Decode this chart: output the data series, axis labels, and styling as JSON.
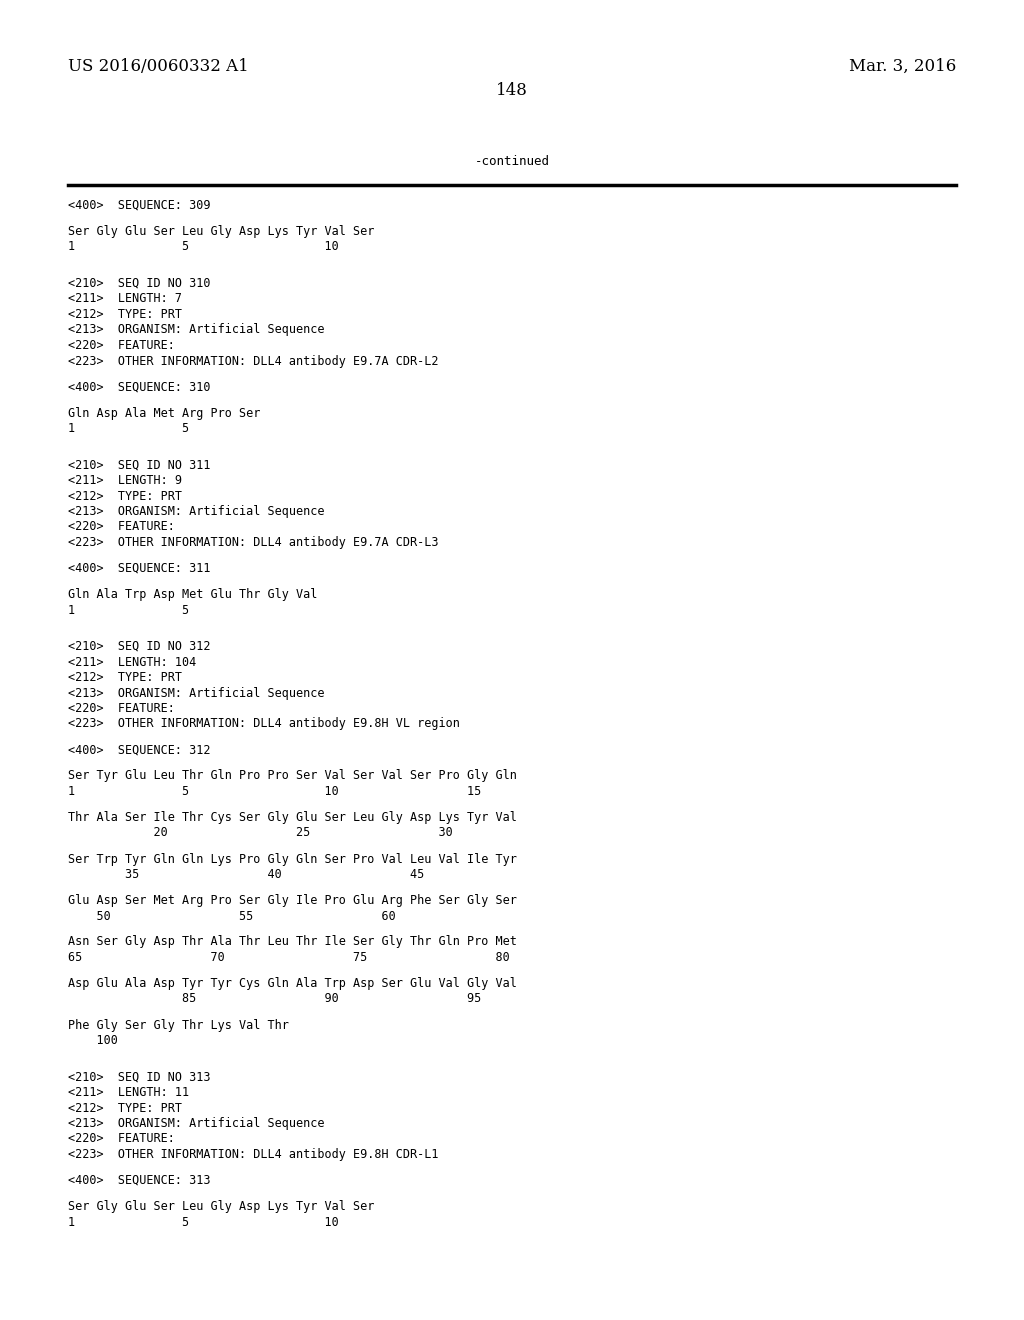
{
  "bg_color": "#ffffff",
  "header_left": "US 2016/0060332 A1",
  "header_right": "Mar. 3, 2016",
  "page_number": "148",
  "continued_label": "-continued",
  "text_color": "#000000",
  "content": [
    {
      "type": "seq_tag",
      "text": "<400>  SEQUENCE: 309"
    },
    {
      "type": "blank"
    },
    {
      "type": "sequence",
      "text": "Ser Gly Glu Ser Leu Gly Asp Lys Tyr Val Ser"
    },
    {
      "type": "numbers",
      "text": "1               5                   10"
    },
    {
      "type": "blank"
    },
    {
      "type": "blank"
    },
    {
      "type": "meta",
      "text": "<210>  SEQ ID NO 310"
    },
    {
      "type": "meta",
      "text": "<211>  LENGTH: 7"
    },
    {
      "type": "meta",
      "text": "<212>  TYPE: PRT"
    },
    {
      "type": "meta",
      "text": "<213>  ORGANISM: Artificial Sequence"
    },
    {
      "type": "meta",
      "text": "<220>  FEATURE:"
    },
    {
      "type": "meta",
      "text": "<223>  OTHER INFORMATION: DLL4 antibody E9.7A CDR-L2"
    },
    {
      "type": "blank"
    },
    {
      "type": "seq_tag",
      "text": "<400>  SEQUENCE: 310"
    },
    {
      "type": "blank"
    },
    {
      "type": "sequence",
      "text": "Gln Asp Ala Met Arg Pro Ser"
    },
    {
      "type": "numbers",
      "text": "1               5"
    },
    {
      "type": "blank"
    },
    {
      "type": "blank"
    },
    {
      "type": "meta",
      "text": "<210>  SEQ ID NO 311"
    },
    {
      "type": "meta",
      "text": "<211>  LENGTH: 9"
    },
    {
      "type": "meta",
      "text": "<212>  TYPE: PRT"
    },
    {
      "type": "meta",
      "text": "<213>  ORGANISM: Artificial Sequence"
    },
    {
      "type": "meta",
      "text": "<220>  FEATURE:"
    },
    {
      "type": "meta",
      "text": "<223>  OTHER INFORMATION: DLL4 antibody E9.7A CDR-L3"
    },
    {
      "type": "blank"
    },
    {
      "type": "seq_tag",
      "text": "<400>  SEQUENCE: 311"
    },
    {
      "type": "blank"
    },
    {
      "type": "sequence",
      "text": "Gln Ala Trp Asp Met Glu Thr Gly Val"
    },
    {
      "type": "numbers",
      "text": "1               5"
    },
    {
      "type": "blank"
    },
    {
      "type": "blank"
    },
    {
      "type": "meta",
      "text": "<210>  SEQ ID NO 312"
    },
    {
      "type": "meta",
      "text": "<211>  LENGTH: 104"
    },
    {
      "type": "meta",
      "text": "<212>  TYPE: PRT"
    },
    {
      "type": "meta",
      "text": "<213>  ORGANISM: Artificial Sequence"
    },
    {
      "type": "meta",
      "text": "<220>  FEATURE:"
    },
    {
      "type": "meta",
      "text": "<223>  OTHER INFORMATION: DLL4 antibody E9.8H VL region"
    },
    {
      "type": "blank"
    },
    {
      "type": "seq_tag",
      "text": "<400>  SEQUENCE: 312"
    },
    {
      "type": "blank"
    },
    {
      "type": "sequence",
      "text": "Ser Tyr Glu Leu Thr Gln Pro Pro Ser Val Ser Val Ser Pro Gly Gln"
    },
    {
      "type": "numbers",
      "text": "1               5                   10                  15"
    },
    {
      "type": "blank"
    },
    {
      "type": "sequence",
      "text": "Thr Ala Ser Ile Thr Cys Ser Gly Glu Ser Leu Gly Asp Lys Tyr Val"
    },
    {
      "type": "numbers",
      "text": "            20                  25                  30"
    },
    {
      "type": "blank"
    },
    {
      "type": "sequence",
      "text": "Ser Trp Tyr Gln Gln Lys Pro Gly Gln Ser Pro Val Leu Val Ile Tyr"
    },
    {
      "type": "numbers",
      "text": "        35                  40                  45"
    },
    {
      "type": "blank"
    },
    {
      "type": "sequence",
      "text": "Glu Asp Ser Met Arg Pro Ser Gly Ile Pro Glu Arg Phe Ser Gly Ser"
    },
    {
      "type": "numbers",
      "text": "    50                  55                  60"
    },
    {
      "type": "blank"
    },
    {
      "type": "sequence",
      "text": "Asn Ser Gly Asp Thr Ala Thr Leu Thr Ile Ser Gly Thr Gln Pro Met"
    },
    {
      "type": "numbers",
      "text": "65                  70                  75                  80"
    },
    {
      "type": "blank"
    },
    {
      "type": "sequence",
      "text": "Asp Glu Ala Asp Tyr Tyr Cys Gln Ala Trp Asp Ser Glu Val Gly Val"
    },
    {
      "type": "numbers",
      "text": "                85                  90                  95"
    },
    {
      "type": "blank"
    },
    {
      "type": "sequence",
      "text": "Phe Gly Ser Gly Thr Lys Val Thr"
    },
    {
      "type": "numbers",
      "text": "    100"
    },
    {
      "type": "blank"
    },
    {
      "type": "blank"
    },
    {
      "type": "meta",
      "text": "<210>  SEQ ID NO 313"
    },
    {
      "type": "meta",
      "text": "<211>  LENGTH: 11"
    },
    {
      "type": "meta",
      "text": "<212>  TYPE: PRT"
    },
    {
      "type": "meta",
      "text": "<213>  ORGANISM: Artificial Sequence"
    },
    {
      "type": "meta",
      "text": "<220>  FEATURE:"
    },
    {
      "type": "meta",
      "text": "<223>  OTHER INFORMATION: DLL4 antibody E9.8H CDR-L1"
    },
    {
      "type": "blank"
    },
    {
      "type": "seq_tag",
      "text": "<400>  SEQUENCE: 313"
    },
    {
      "type": "blank"
    },
    {
      "type": "sequence",
      "text": "Ser Gly Glu Ser Leu Gly Asp Lys Tyr Val Ser"
    },
    {
      "type": "numbers",
      "text": "1               5                   10"
    }
  ]
}
